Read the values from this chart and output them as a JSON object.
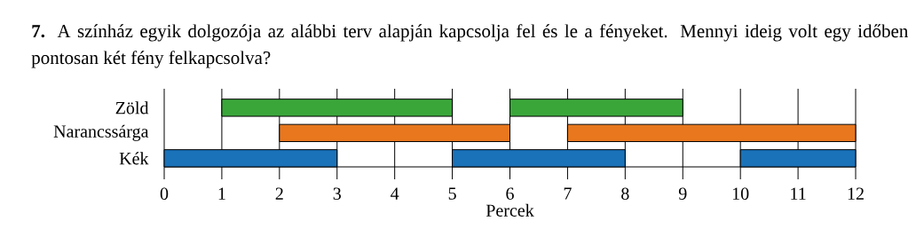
{
  "chart_data": {
    "type": "bar",
    "orientation": "horizontal",
    "title": "**7.** A színház egyik dolgozója az alábbi terv alapján kapcsolja fel és le a fényeket. Mennyi ideig volt egy időben pontosan két fény felkapcsolva?",
    "categories": [
      "Zöld",
      "Narancssárga",
      "Kék"
    ],
    "xlabel": "Percek",
    "xlim": [
      0,
      12
    ],
    "xticks": [
      0,
      1,
      2,
      3,
      4,
      5,
      6,
      7,
      8,
      9,
      10,
      11,
      12
    ],
    "grid": "x",
    "series": [
      {
        "colors": [
          "#3aa63a",
          "#e8771e",
          "#1a72b8"
        ],
        "base": [
          1,
          2,
          0
        ],
        "values": [
          4,
          4,
          3
        ]
      },
      {
        "colors": [
          "#3aa63a",
          "#e8771e",
          "#1a72b8"
        ],
        "base": [
          6,
          7,
          5
        ],
        "values": [
          3,
          5,
          3
        ]
      },
      {
        "colors": [
          "#3aa63a",
          "#e8771e",
          "#1a72b8"
        ],
        "base": [
          null,
          null,
          10
        ],
        "values": [
          null,
          null,
          2
        ]
      }
    ]
  }
}
